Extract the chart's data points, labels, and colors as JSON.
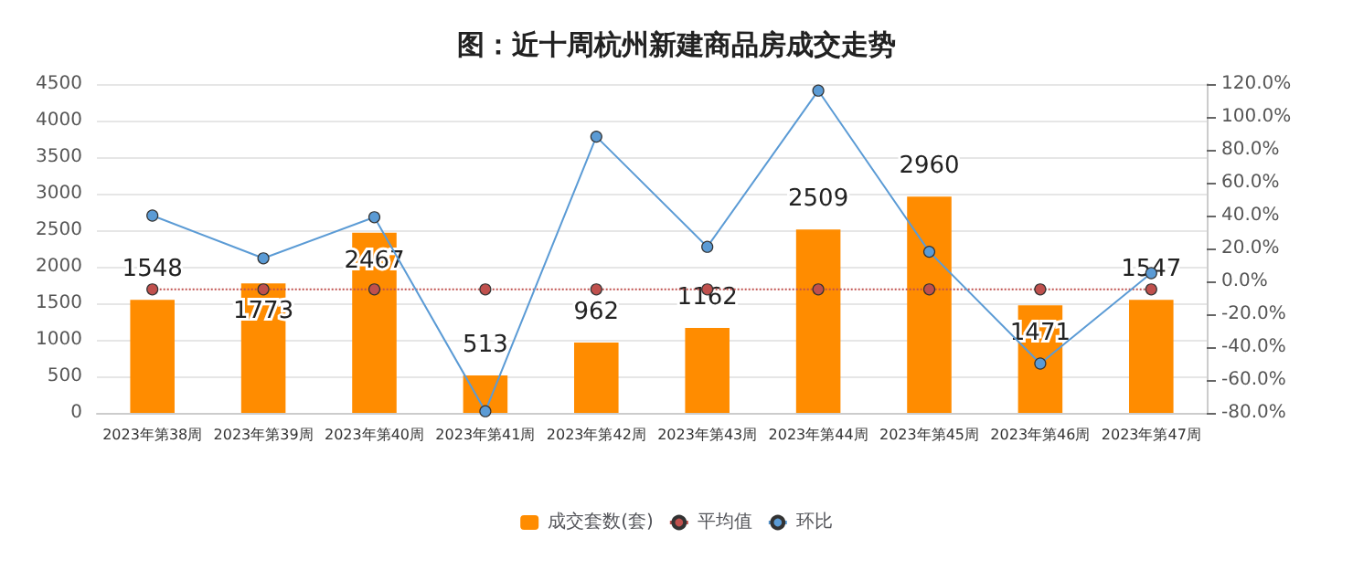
{
  "chart_data": {
    "type": "bar",
    "title": "图：近十周杭州新建商品房成交走势",
    "categories": [
      "2023年第38周",
      "2023年第39周",
      "2023年第40周",
      "2023年第41周",
      "2023年第42周",
      "2023年第43周",
      "2023年第44周",
      "2023年第45周",
      "2023年第46周",
      "2023年第47周"
    ],
    "series": [
      {
        "name": "成交套数(套)",
        "color": "#ff8c00",
        "data_labels": true,
        "values": [
          1548,
          1773,
          2467,
          513,
          962,
          1162,
          2509,
          2960,
          1471,
          1547
        ]
      },
      {
        "name": "平均值",
        "type": "line",
        "color": "#c0504d",
        "line_style": "dotted",
        "marker": "circle",
        "values": [
          1690,
          1690,
          1690,
          1690,
          1690,
          1690,
          1690,
          1690,
          1690,
          1690
        ]
      },
      {
        "name": "环比",
        "type": "line",
        "axis": "y2",
        "color": "#5b9bd5",
        "line_style": "solid",
        "marker": "circle",
        "values": [
          40,
          14,
          39,
          -79,
          88,
          21,
          116,
          18,
          -50,
          5
        ]
      }
    ],
    "ylim": [
      0,
      4500
    ],
    "yticks": [
      0,
      500,
      1000,
      1500,
      2000,
      2500,
      3000,
      3500,
      4000,
      4500
    ],
    "y2lim": [
      -80,
      120
    ],
    "y2ticks": [
      {
        "value": -80,
        "label": "-80.0%"
      },
      {
        "value": -60,
        "label": "-60.0%"
      },
      {
        "value": -40,
        "label": "-40.0%"
      },
      {
        "value": -20,
        "label": "-20.0%"
      },
      {
        "value": 0,
        "label": "0.0%"
      },
      {
        "value": 20,
        "label": "20.0%"
      },
      {
        "value": 40,
        "label": "40.0%"
      },
      {
        "value": 60,
        "label": "60.0%"
      },
      {
        "value": 80,
        "label": "80.0%"
      },
      {
        "value": 100,
        "label": "100.0%"
      },
      {
        "value": 120,
        "label": "120.0%"
      }
    ],
    "grid": "y",
    "legend": "bottom"
  }
}
